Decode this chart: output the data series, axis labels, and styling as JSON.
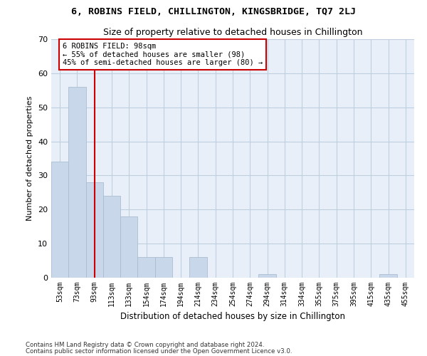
{
  "title": "6, ROBINS FIELD, CHILLINGTON, KINGSBRIDGE, TQ7 2LJ",
  "subtitle": "Size of property relative to detached houses in Chillington",
  "xlabel": "Distribution of detached houses by size in Chillington",
  "ylabel": "Number of detached properties",
  "bar_color": "#c8d8ea",
  "bar_edge_color": "#aabdd0",
  "background_color": "#ffffff",
  "plot_bg_color": "#e8eff8",
  "grid_color": "#c0cfe0",
  "categories": [
    "53sqm",
    "73sqm",
    "93sqm",
    "113sqm",
    "133sqm",
    "154sqm",
    "174sqm",
    "194sqm",
    "214sqm",
    "234sqm",
    "254sqm",
    "274sqm",
    "294sqm",
    "314sqm",
    "334sqm",
    "355sqm",
    "375sqm",
    "395sqm",
    "415sqm",
    "435sqm",
    "455sqm"
  ],
  "values": [
    34,
    56,
    28,
    24,
    18,
    6,
    6,
    0,
    6,
    0,
    0,
    0,
    1,
    0,
    0,
    0,
    0,
    0,
    0,
    1,
    0
  ],
  "ylim": [
    0,
    70
  ],
  "yticks": [
    0,
    10,
    20,
    30,
    40,
    50,
    60,
    70
  ],
  "vline_x_index": 2,
  "vline_color": "#cc0000",
  "annotation_text": "6 ROBINS FIELD: 98sqm\n← 55% of detached houses are smaller (98)\n45% of semi-detached houses are larger (80) →",
  "annotation_box_color": "#ffffff",
  "annotation_box_edge_color": "#cc0000",
  "footer_line1": "Contains HM Land Registry data © Crown copyright and database right 2024.",
  "footer_line2": "Contains public sector information licensed under the Open Government Licence v3.0."
}
